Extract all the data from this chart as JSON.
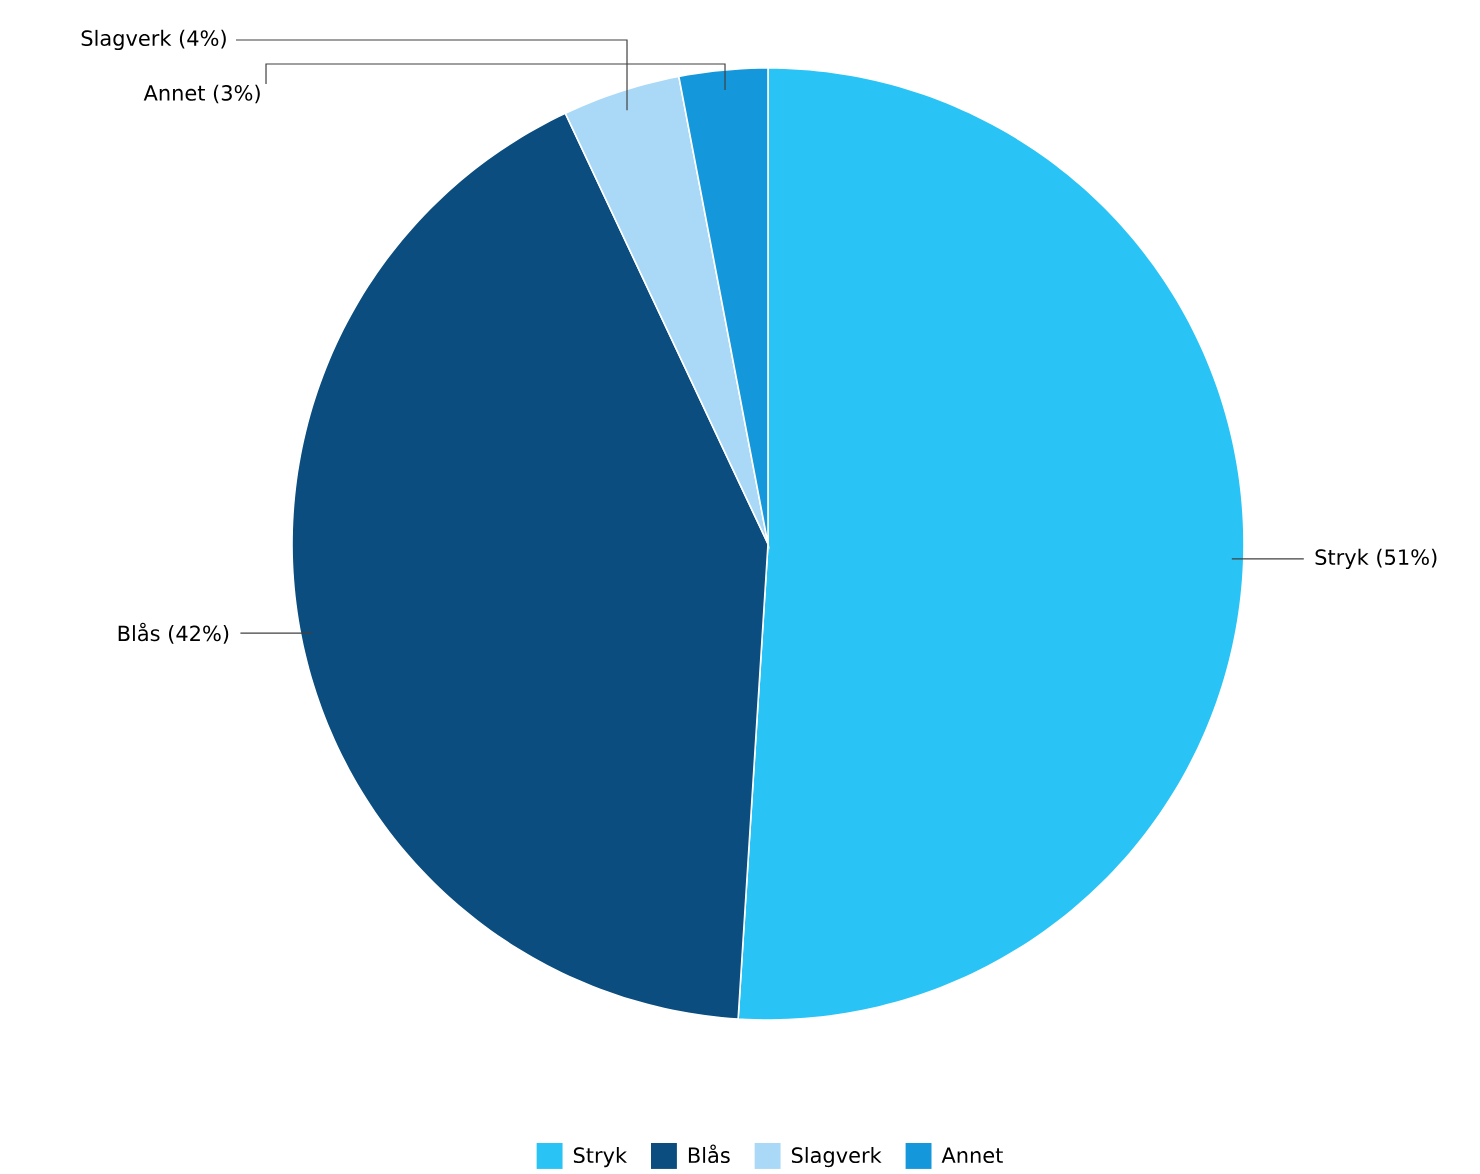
{
  "chart_data": {
    "type": "pie",
    "categories": [
      "Stryk",
      "Blås",
      "Slagverk",
      "Annet"
    ],
    "values": [
      51,
      42,
      4,
      3
    ],
    "colors": [
      "#29c4f5",
      "#0b4d7e",
      "#a9d9f6",
      "#1598db"
    ],
    "value_labels": [
      "Stryk (51%)",
      "Blås (42%)",
      "Slagverk (4%)",
      "Annet (3%)"
    ],
    "legend": "bottom"
  }
}
